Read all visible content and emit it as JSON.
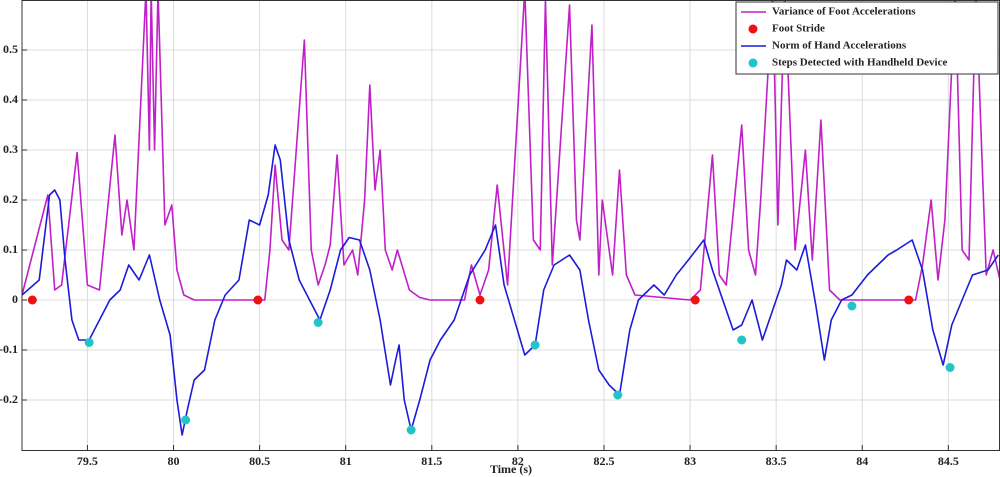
{
  "chart_data": {
    "type": "line",
    "xlabel": "Time (s)",
    "xlim": [
      79.12,
      84.8
    ],
    "ylim": [
      -0.3,
      0.6
    ],
    "xticks": [
      79.5,
      80,
      80.5,
      81,
      81.5,
      82,
      82.5,
      83,
      83.5,
      84,
      84.5
    ],
    "yticks": [
      -0.2,
      -0.1,
      0,
      0.1,
      0.2,
      0.3,
      0.4,
      0.5
    ],
    "grid": true,
    "legend": "upper right",
    "series": [
      {
        "name": "Variance of Foot Accelerations",
        "color": "#c020c8",
        "mode": "line",
        "x": [
          79.12,
          79.27,
          79.31,
          79.35,
          79.44,
          79.5,
          79.57,
          79.66,
          79.7,
          79.73,
          79.77,
          79.84,
          79.86,
          79.87,
          79.89,
          79.91,
          79.95,
          79.99,
          80.02,
          80.06,
          80.12,
          80.53,
          80.56,
          80.59,
          80.63,
          80.67,
          80.76,
          80.8,
          80.84,
          80.88,
          80.91,
          80.95,
          80.99,
          81.04,
          81.07,
          81.11,
          81.14,
          81.17,
          81.2,
          81.23,
          81.27,
          81.3,
          81.37,
          81.43,
          81.49,
          81.69,
          81.73,
          81.78,
          81.83,
          81.88,
          81.94,
          82.04,
          82.09,
          82.13,
          82.16,
          82.2,
          82.3,
          82.34,
          82.36,
          82.43,
          82.47,
          82.49,
          82.55,
          82.59,
          82.63,
          82.68,
          83.0,
          83.06,
          83.13,
          83.17,
          83.21,
          83.3,
          83.34,
          83.38,
          83.41,
          83.48,
          83.51,
          83.55,
          83.61,
          83.67,
          83.71,
          83.76,
          83.81,
          83.87,
          84.31,
          84.35,
          84.4,
          84.44,
          84.48,
          84.54,
          84.58,
          84.62,
          84.66,
          84.72,
          84.76,
          84.8
        ],
        "values": [
          0.01,
          0.21,
          0.02,
          0.03,
          0.295,
          0.03,
          0.02,
          0.33,
          0.13,
          0.2,
          0.1,
          0.62,
          0.3,
          0.62,
          0.3,
          0.62,
          0.15,
          0.19,
          0.06,
          0.01,
          0.0,
          0.0,
          0.1,
          0.27,
          0.12,
          0.1,
          0.52,
          0.1,
          0.03,
          0.07,
          0.11,
          0.29,
          0.07,
          0.1,
          0.05,
          0.2,
          0.43,
          0.22,
          0.3,
          0.1,
          0.06,
          0.1,
          0.02,
          0.005,
          0.0,
          0.0,
          0.07,
          0.01,
          0.06,
          0.23,
          0.03,
          0.62,
          0.12,
          0.1,
          0.6,
          0.07,
          0.59,
          0.16,
          0.12,
          0.55,
          0.05,
          0.2,
          0.05,
          0.26,
          0.05,
          0.01,
          0.0,
          0.02,
          0.29,
          0.05,
          0.03,
          0.35,
          0.1,
          0.05,
          0.2,
          0.62,
          0.15,
          0.62,
          0.1,
          0.3,
          0.08,
          0.36,
          0.02,
          0.0,
          0.0,
          0.07,
          0.2,
          0.04,
          0.16,
          0.62,
          0.1,
          0.08,
          0.62,
          0.05,
          0.1,
          0.04
        ]
      },
      {
        "name": "Foot Stride",
        "color": "#ee1111",
        "mode": "markers",
        "x": [
          79.18,
          80.49,
          81.78,
          83.03,
          84.27
        ],
        "values": [
          0,
          0,
          0,
          0,
          0
        ]
      },
      {
        "name": "Norm of Hand Accelerations",
        "color": "#1c1cd8",
        "mode": "line",
        "x": [
          79.12,
          79.22,
          79.28,
          79.31,
          79.34,
          79.37,
          79.41,
          79.45,
          79.51,
          79.57,
          79.63,
          79.69,
          79.74,
          79.8,
          79.86,
          79.92,
          79.98,
          80.02,
          80.05,
          80.08,
          80.12,
          80.18,
          80.24,
          80.3,
          80.38,
          80.44,
          80.5,
          80.55,
          80.59,
          80.62,
          80.67,
          80.73,
          80.79,
          80.85,
          80.91,
          80.97,
          81.02,
          81.08,
          81.14,
          81.2,
          81.26,
          81.29,
          81.31,
          81.34,
          81.38,
          81.43,
          81.49,
          81.55,
          81.63,
          81.72,
          81.81,
          81.87,
          81.92,
          81.98,
          82.04,
          82.1,
          82.15,
          82.21,
          82.3,
          82.36,
          82.41,
          82.47,
          82.53,
          82.59,
          82.65,
          82.7,
          82.79,
          82.85,
          82.92,
          82.99,
          83.08,
          83.13,
          83.19,
          83.25,
          83.3,
          83.36,
          83.42,
          83.48,
          83.53,
          83.56,
          83.62,
          83.67,
          83.73,
          83.78,
          83.82,
          83.88,
          83.94,
          84.03,
          84.09,
          84.15,
          84.2,
          84.29,
          84.35,
          84.41,
          84.47,
          84.52,
          84.58,
          84.64,
          84.73,
          84.79
        ],
        "values": [
          0.01,
          0.04,
          0.21,
          0.22,
          0.2,
          0.08,
          -0.04,
          -0.08,
          -0.08,
          -0.04,
          0.0,
          0.02,
          0.07,
          0.04,
          0.09,
          0.0,
          -0.07,
          -0.2,
          -0.27,
          -0.22,
          -0.16,
          -0.14,
          -0.04,
          0.01,
          0.04,
          0.16,
          0.15,
          0.21,
          0.31,
          0.28,
          0.12,
          0.04,
          0.0,
          -0.04,
          0.02,
          0.1,
          0.125,
          0.12,
          0.06,
          -0.04,
          -0.17,
          -0.12,
          -0.09,
          -0.2,
          -0.26,
          -0.2,
          -0.12,
          -0.08,
          -0.04,
          0.05,
          0.1,
          0.15,
          0.03,
          -0.04,
          -0.11,
          -0.09,
          0.02,
          0.07,
          0.09,
          0.06,
          -0.04,
          -0.14,
          -0.17,
          -0.19,
          -0.06,
          0.0,
          0.03,
          0.01,
          0.05,
          0.08,
          0.12,
          0.06,
          0.0,
          -0.06,
          -0.05,
          0.0,
          -0.08,
          -0.02,
          0.03,
          0.08,
          0.06,
          0.11,
          -0.01,
          -0.12,
          -0.04,
          0.0,
          0.01,
          0.05,
          0.07,
          0.09,
          0.1,
          0.12,
          0.06,
          -0.06,
          -0.13,
          -0.05,
          0.0,
          0.05,
          0.06,
          0.09
        ]
      },
      {
        "name": "Steps Detected with Handheld Device",
        "color": "#22c4c8",
        "mode": "markers",
        "x": [
          79.51,
          80.07,
          80.84,
          81.38,
          82.1,
          82.58,
          83.3,
          83.94,
          84.51
        ],
        "values": [
          -0.085,
          -0.24,
          -0.045,
          -0.26,
          -0.09,
          -0.19,
          -0.08,
          -0.012,
          -0.135
        ]
      }
    ]
  }
}
